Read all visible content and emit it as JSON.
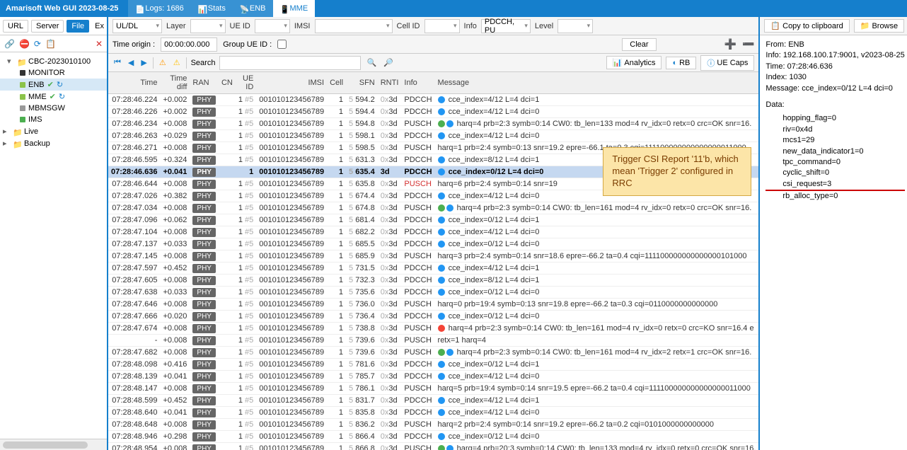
{
  "app_title": "Amarisoft Web GUI 2023-08-25",
  "top_tabs": [
    {
      "icon": "📄",
      "label": "Logs: 1686"
    },
    {
      "icon": "📊",
      "label": "Stats"
    },
    {
      "icon": "📡",
      "label": "ENB"
    },
    {
      "icon": "📱",
      "label": "MME"
    }
  ],
  "left_toolbar": [
    "URL",
    "Server",
    "File"
  ],
  "left_toolbar_right": "Ex",
  "tree": {
    "root": {
      "label": "CBC-2023010100",
      "expanded": true
    },
    "children": [
      {
        "label": "MONITOR",
        "icons": ""
      },
      {
        "label": "ENB",
        "icons": "✔↻",
        "selected": true
      },
      {
        "label": "MME",
        "icons": "✔↻"
      },
      {
        "label": "MBMSGW",
        "icons": ""
      },
      {
        "label": "IMS",
        "icons": ""
      }
    ],
    "folders": [
      "Live",
      "Backup"
    ]
  },
  "filters": {
    "uldl": "UL/DL",
    "layer": "Layer",
    "ueid": "UE ID",
    "imsi": "IMSI",
    "cellid": "Cell ID",
    "info": "Info",
    "info_val": "PDCCH, PU",
    "level": "Level"
  },
  "time_origin_lbl": "Time origin :",
  "time_origin_val": "00:00:00.000",
  "group_ue_lbl": "Group UE ID :",
  "clear_btn": "Clear",
  "search_lbl": "Search",
  "right_buttons": [
    "Analytics",
    "RB",
    "UE Caps"
  ],
  "columns": [
    "Time",
    "Time diff",
    "RAN",
    "CN",
    "UE ID",
    "IMSI",
    "Cell",
    "SFN",
    "RNTI",
    "Info",
    "Message"
  ],
  "rows": [
    {
      "time": "07:28:46.224",
      "diff": "+0.002",
      "ran": "PHY",
      "ueid": "1",
      "idx": "#5",
      "imsi": "001010123456789",
      "cell": "1",
      "sfn": "5",
      "sfn2": "594.2",
      "rnti": "0x3d",
      "info": "PDCCH",
      "icons": [
        "blue"
      ],
      "msg": "cce_index=4/12 L=4 dci=1"
    },
    {
      "time": "07:28:46.226",
      "diff": "+0.002",
      "ran": "PHY",
      "ueid": "1",
      "idx": "#5",
      "imsi": "001010123456789",
      "cell": "1",
      "sfn": "5",
      "sfn2": "594.4",
      "rnti": "0x3d",
      "info": "PDCCH",
      "icons": [
        "blue"
      ],
      "msg": "cce_index=4/12 L=4 dci=0"
    },
    {
      "time": "07:28:46.234",
      "diff": "+0.008",
      "ran": "PHY",
      "ueid": "1",
      "idx": "#5",
      "imsi": "001010123456789",
      "cell": "1",
      "sfn": "5",
      "sfn2": "594.8",
      "rnti": "0x3d",
      "info": "PUSCH",
      "icons": [
        "green",
        "blue"
      ],
      "msg": "harq=4 prb=2:3 symb=0:14 CW0: tb_len=133 mod=4 rv_idx=0 retx=0 crc=OK snr=16."
    },
    {
      "time": "07:28:46.263",
      "diff": "+0.029",
      "ran": "PHY",
      "ueid": "1",
      "idx": "#5",
      "imsi": "001010123456789",
      "cell": "1",
      "sfn": "5",
      "sfn2": "598.1",
      "rnti": "0x3d",
      "info": "PDCCH",
      "icons": [
        "blue"
      ],
      "msg": "cce_index=4/12 L=4 dci=0"
    },
    {
      "time": "07:28:46.271",
      "diff": "+0.008",
      "ran": "PHY",
      "ueid": "1",
      "idx": "#5",
      "imsi": "001010123456789",
      "cell": "1",
      "sfn": "5",
      "sfn2": "598.5",
      "rnti": "0x3d",
      "info": "PUSCH",
      "icons": [],
      "msg": "harq=1 prb=2:4 symb=0:13 snr=19.2 epre=-66.1 ta=0.3 cqi=111100000000000000011000"
    },
    {
      "time": "07:28:46.595",
      "diff": "+0.324",
      "ran": "PHY",
      "ueid": "1",
      "idx": "#5",
      "imsi": "001010123456789",
      "cell": "1",
      "sfn": "5",
      "sfn2": "631.3",
      "rnti": "0x3d",
      "info": "PDCCH",
      "icons": [
        "blue"
      ],
      "msg": "cce_index=8/12 L=4 dci=1"
    },
    {
      "time": "07:28:46.636",
      "diff": "+0.041",
      "ran": "PHY",
      "ueid": "1",
      "idx": "",
      "imsi": "001010123456789",
      "cell": "1",
      "sfn": "5",
      "sfn2": "635.4",
      "rnti": "3d",
      "info": "PDCCH",
      "icons": [
        "blue"
      ],
      "msg": "cce_index=0/12 L=4 dci=0",
      "hl": true
    },
    {
      "time": "07:28:46.644",
      "diff": "+0.008",
      "ran": "PHY",
      "ueid": "1",
      "idx": "#5",
      "imsi": "001010123456789",
      "cell": "1",
      "sfn": "5",
      "sfn2": "635.8",
      "rnti": "0x3d",
      "info": "PUSCH",
      "icons": [],
      "msg": "harq=6 prb=2:4 symb=0:14 snr=19",
      "pusch_red": true
    },
    {
      "time": "07:28:47.026",
      "diff": "+0.382",
      "ran": "PHY",
      "ueid": "1",
      "idx": "#5",
      "imsi": "001010123456789",
      "cell": "1",
      "sfn": "5",
      "sfn2": "674.4",
      "rnti": "0x3d",
      "info": "PDCCH",
      "icons": [
        "blue"
      ],
      "msg": "cce_index=4/12 L=4 dci=0"
    },
    {
      "time": "07:28:47.034",
      "diff": "+0.008",
      "ran": "PHY",
      "ueid": "1",
      "idx": "#5",
      "imsi": "001010123456789",
      "cell": "1",
      "sfn": "5",
      "sfn2": "674.8",
      "rnti": "0x3d",
      "info": "PUSCH",
      "icons": [
        "green",
        "blue"
      ],
      "msg": "harq=4 prb=2:3 symb=0:14 CW0: tb_len=161 mod=4 rv_idx=0 retx=0 crc=OK snr=16."
    },
    {
      "time": "07:28:47.096",
      "diff": "+0.062",
      "ran": "PHY",
      "ueid": "1",
      "idx": "#5",
      "imsi": "001010123456789",
      "cell": "1",
      "sfn": "5",
      "sfn2": "681.4",
      "rnti": "0x3d",
      "info": "PDCCH",
      "icons": [
        "blue"
      ],
      "msg": "cce_index=0/12 L=4 dci=1"
    },
    {
      "time": "07:28:47.104",
      "diff": "+0.008",
      "ran": "PHY",
      "ueid": "1",
      "idx": "#5",
      "imsi": "001010123456789",
      "cell": "1",
      "sfn": "5",
      "sfn2": "682.2",
      "rnti": "0x3d",
      "info": "PDCCH",
      "icons": [
        "blue"
      ],
      "msg": "cce_index=4/12 L=4 dci=0"
    },
    {
      "time": "07:28:47.137",
      "diff": "+0.033",
      "ran": "PHY",
      "ueid": "1",
      "idx": "#5",
      "imsi": "001010123456789",
      "cell": "1",
      "sfn": "5",
      "sfn2": "685.5",
      "rnti": "0x3d",
      "info": "PDCCH",
      "icons": [
        "blue"
      ],
      "msg": "cce_index=0/12 L=4 dci=0"
    },
    {
      "time": "07:28:47.145",
      "diff": "+0.008",
      "ran": "PHY",
      "ueid": "1",
      "idx": "#5",
      "imsi": "001010123456789",
      "cell": "1",
      "sfn": "5",
      "sfn2": "685.9",
      "rnti": "0x3d",
      "info": "PUSCH",
      "icons": [],
      "msg": "harq=3 prb=2:4 symb=0:14 snr=18.6 epre=-66.2 ta=0.4 cqi=111100000000000000101000"
    },
    {
      "time": "07:28:47.597",
      "diff": "+0.452",
      "ran": "PHY",
      "ueid": "1",
      "idx": "#5",
      "imsi": "001010123456789",
      "cell": "1",
      "sfn": "5",
      "sfn2": "731.5",
      "rnti": "0x3d",
      "info": "PDCCH",
      "icons": [
        "blue"
      ],
      "msg": "cce_index=4/12 L=4 dci=1"
    },
    {
      "time": "07:28:47.605",
      "diff": "+0.008",
      "ran": "PHY",
      "ueid": "1",
      "idx": "#5",
      "imsi": "001010123456789",
      "cell": "1",
      "sfn": "5",
      "sfn2": "732.3",
      "rnti": "0x3d",
      "info": "PDCCH",
      "icons": [
        "blue"
      ],
      "msg": "cce_index=8/12 L=4 dci=1"
    },
    {
      "time": "07:28:47.638",
      "diff": "+0.033",
      "ran": "PHY",
      "ueid": "1",
      "idx": "#5",
      "imsi": "001010123456789",
      "cell": "1",
      "sfn": "5",
      "sfn2": "735.6",
      "rnti": "0x3d",
      "info": "PDCCH",
      "icons": [
        "blue"
      ],
      "msg": "cce_index=0/12 L=4 dci=0"
    },
    {
      "time": "07:28:47.646",
      "diff": "+0.008",
      "ran": "PHY",
      "ueid": "1",
      "idx": "#5",
      "imsi": "001010123456789",
      "cell": "1",
      "sfn": "5",
      "sfn2": "736.0",
      "rnti": "0x3d",
      "info": "PUSCH",
      "icons": [],
      "msg": "harq=0 prb=19:4 symb=0:13 snr=19.8 epre=-66.2 ta=0.3 cqi=0110000000000000"
    },
    {
      "time": "07:28:47.666",
      "diff": "+0.020",
      "ran": "PHY",
      "ueid": "1",
      "idx": "#5",
      "imsi": "001010123456789",
      "cell": "1",
      "sfn": "5",
      "sfn2": "736.4",
      "rnti": "0x3d",
      "info": "PDCCH",
      "icons": [
        "blue"
      ],
      "msg": "cce_index=0/12 L=4 dci=0"
    },
    {
      "time": "07:28:47.674",
      "diff": "+0.008",
      "ran": "PHY",
      "ueid": "1",
      "idx": "#5",
      "imsi": "001010123456789",
      "cell": "1",
      "sfn": "5",
      "sfn2": "738.8",
      "rnti": "0x3d",
      "info": "PUSCH",
      "icons": [
        "red"
      ],
      "msg": "harq=4 prb=2:3 symb=0:14 CW0: tb_len=161 mod=4 rv_idx=0 retx=0 crc=KO snr=16.4 e"
    },
    {
      "time": "-",
      "diff": "+0.008",
      "ran": "PHY",
      "ueid": "1",
      "idx": "#5",
      "imsi": "001010123456789",
      "cell": "1",
      "sfn": "5",
      "sfn2": "739.6",
      "rnti": "0x3d",
      "info": "PUSCH",
      "icons": [],
      "msg": "retx=1 harq=4"
    },
    {
      "time": "07:28:47.682",
      "diff": "+0.008",
      "ran": "PHY",
      "ueid": "1",
      "idx": "#5",
      "imsi": "001010123456789",
      "cell": "1",
      "sfn": "5",
      "sfn2": "739.6",
      "rnti": "0x3d",
      "info": "PUSCH",
      "icons": [
        "green",
        "blue"
      ],
      "msg": "harq=4 prb=2:3 symb=0:14 CW0: tb_len=161 mod=4 rv_idx=2 retx=1 crc=OK snr=16."
    },
    {
      "time": "07:28:48.098",
      "diff": "+0.416",
      "ran": "PHY",
      "ueid": "1",
      "idx": "#5",
      "imsi": "001010123456789",
      "cell": "1",
      "sfn": "5",
      "sfn2": "781.6",
      "rnti": "0x3d",
      "info": "PDCCH",
      "icons": [
        "blue"
      ],
      "msg": "cce_index=0/12 L=4 dci=1"
    },
    {
      "time": "07:28:48.139",
      "diff": "+0.041",
      "ran": "PHY",
      "ueid": "1",
      "idx": "#5",
      "imsi": "001010123456789",
      "cell": "1",
      "sfn": "5",
      "sfn2": "785.7",
      "rnti": "0x3d",
      "info": "PDCCH",
      "icons": [
        "blue"
      ],
      "msg": "cce_index=4/12 L=4 dci=0"
    },
    {
      "time": "07:28:48.147",
      "diff": "+0.008",
      "ran": "PHY",
      "ueid": "1",
      "idx": "#5",
      "imsi": "001010123456789",
      "cell": "1",
      "sfn": "5",
      "sfn2": "786.1",
      "rnti": "0x3d",
      "info": "PUSCH",
      "icons": [],
      "msg": "harq=5 prb=19:4 symb=0:14 snr=19.5 epre=-66.2 ta=0.4 cqi=111100000000000000011000"
    },
    {
      "time": "07:28:48.599",
      "diff": "+0.452",
      "ran": "PHY",
      "ueid": "1",
      "idx": "#5",
      "imsi": "001010123456789",
      "cell": "1",
      "sfn": "5",
      "sfn2": "831.7",
      "rnti": "0x3d",
      "info": "PDCCH",
      "icons": [
        "blue"
      ],
      "msg": "cce_index=4/12 L=4 dci=1"
    },
    {
      "time": "07:28:48.640",
      "diff": "+0.041",
      "ran": "PHY",
      "ueid": "1",
      "idx": "#5",
      "imsi": "001010123456789",
      "cell": "1",
      "sfn": "5",
      "sfn2": "835.8",
      "rnti": "0x3d",
      "info": "PDCCH",
      "icons": [
        "blue"
      ],
      "msg": "cce_index=4/12 L=4 dci=0"
    },
    {
      "time": "07:28:48.648",
      "diff": "+0.008",
      "ran": "PHY",
      "ueid": "1",
      "idx": "#5",
      "imsi": "001010123456789",
      "cell": "1",
      "sfn": "5",
      "sfn2": "836.2",
      "rnti": "0x3d",
      "info": "PUSCH",
      "icons": [],
      "msg": "harq=2 prb=2:4 symb=0:14 snr=19.2 epre=-66.2 ta=0.2 cqi=0101000000000000"
    },
    {
      "time": "07:28:48.946",
      "diff": "+0.298",
      "ran": "PHY",
      "ueid": "1",
      "idx": "#5",
      "imsi": "001010123456789",
      "cell": "1",
      "sfn": "5",
      "sfn2": "866.4",
      "rnti": "0x3d",
      "info": "PDCCH",
      "icons": [
        "blue"
      ],
      "msg": "cce_index=0/12 L=4 dci=0"
    },
    {
      "time": "07:28:48.954",
      "diff": "+0.008",
      "ran": "PHY",
      "ueid": "1",
      "idx": "#5",
      "imsi": "001010123456789",
      "cell": "1",
      "sfn": "5",
      "sfn2": "866.8",
      "rnti": "0x3d",
      "info": "PUSCH",
      "icons": [
        "green",
        "blue"
      ],
      "msg": "harq=4 prb=20:3 symb=0:14 CW0: tb_len=133 mod=4 rv_idx=0 retx=0 crc=OK snr=16."
    },
    {
      "time": "07:28:49.100",
      "diff": "+0.146",
      "ran": "PHY",
      "ueid": "1",
      "idx": "#5",
      "imsi": "001010123456789",
      "cell": "1",
      "sfn": "5",
      "sfn2": "881.8",
      "rnti": "0x3d",
      "info": "PDCCH",
      "icons": [
        "blue"
      ],
      "msg": "cce_index=0/12 L=4 dci=1"
    }
  ],
  "right_toolbar": [
    "Copy to clipboard",
    "Browse"
  ],
  "detail": {
    "from_lbl": "From:",
    "from": "ENB",
    "info_lbl": "Info:",
    "info": "192.168.100.17:9001, v2023-08-25",
    "time_lbl": "Time:",
    "time": "07:28:46.636",
    "index_lbl": "Index:",
    "index": "1030",
    "msg_lbl": "Message:",
    "msg": "cce_index=0/12 L=4 dci=0",
    "data_lbl": "Data:",
    "fields": [
      "hopping_flag=0",
      "riv=0x4d",
      "mcs1=29",
      "new_data_indicator1=0",
      "tpc_command=0",
      "cyclic_shift=0",
      "csi_request=3",
      "rb_alloc_type=0"
    ]
  },
  "callout": "Trigger CSI Report '11'b, which mean 'Trigger 2' configured in RRC"
}
